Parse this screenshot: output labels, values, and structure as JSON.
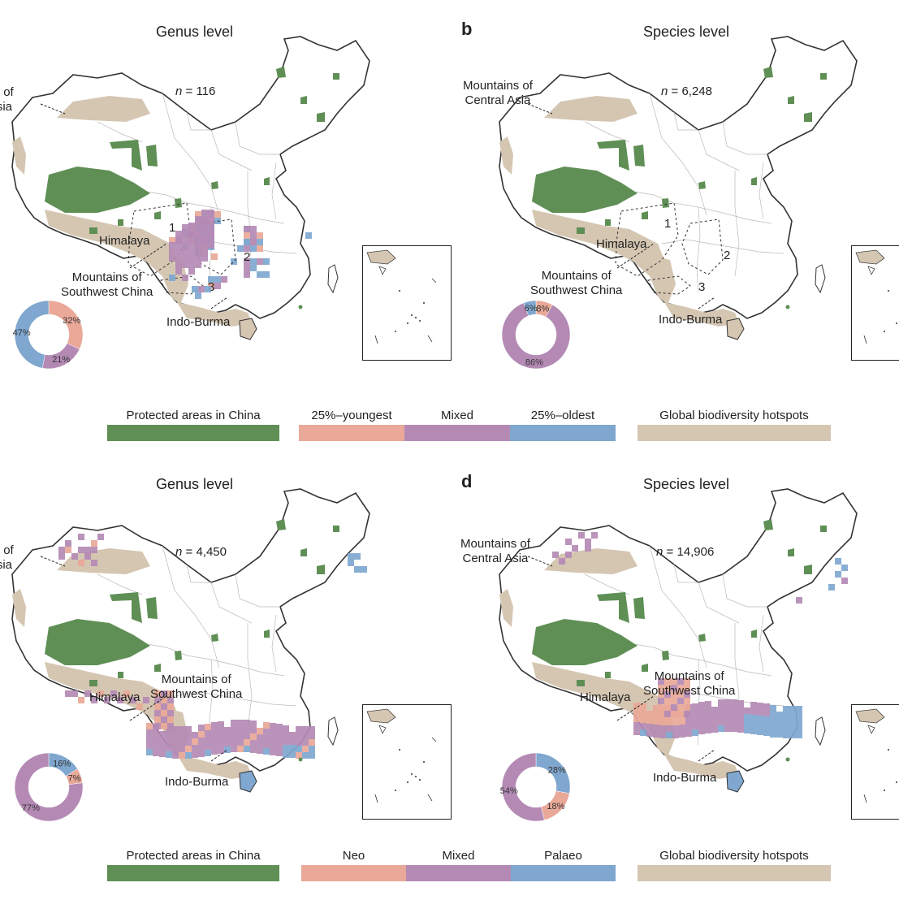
{
  "colors": {
    "protected": "#5f8f55",
    "young": "#e9a898",
    "mixed": "#b48ab5",
    "old": "#7fa7cf",
    "hotspot": "#d5c6b2",
    "border": "#333333",
    "province": "#bbbbbb"
  },
  "panels": [
    {
      "id": "a",
      "letter": "",
      "title": "Genus level",
      "n_label": "116",
      "labels": {
        "central_asia": "ntains of\ntral Asia",
        "himalaya": "Himalaya",
        "southwest": "Mountains of\nSouthwest China",
        "indo_burma": "Indo-Burma",
        "r1": "1",
        "r2": "2",
        "r3": "3"
      },
      "donut": [
        {
          "key": "young",
          "value": 32,
          "label": "32%"
        },
        {
          "key": "mixed",
          "value": 21,
          "label": "21%"
        },
        {
          "key": "old",
          "value": 47,
          "label": "47%"
        }
      ]
    },
    {
      "id": "b",
      "letter": "b",
      "title": "Species level",
      "n_label": "6,248",
      "labels": {
        "central_asia": "Mountains of\nCentral Asia",
        "himalaya": "Himalaya",
        "southwest": "Mountains of\nSouthwest China",
        "indo_burma": "Indo-Burma",
        "r1": "1",
        "r2": "2",
        "r3": "3"
      },
      "donut": [
        {
          "key": "young",
          "value": 8,
          "label": "8%"
        },
        {
          "key": "mixed",
          "value": 86,
          "label": "86%"
        },
        {
          "key": "old",
          "value": 6,
          "label": "6%"
        }
      ]
    },
    {
      "id": "c",
      "letter": "",
      "title": "Genus level",
      "n_label": "4,450",
      "labels": {
        "central_asia": "ntains of\ntral Asia",
        "himalaya": "Himalaya",
        "southwest": "Mountains of\nSouthwest China",
        "indo_burma": "Indo-Burma"
      },
      "donut": [
        {
          "key": "old",
          "value": 16,
          "label": "16%"
        },
        {
          "key": "young",
          "value": 7,
          "label": "7%"
        },
        {
          "key": "mixed",
          "value": 77,
          "label": "77%"
        }
      ]
    },
    {
      "id": "d",
      "letter": "d",
      "title": "Species level",
      "n_label": "14,906",
      "labels": {
        "central_asia": "Mountains of\nCentral Asia",
        "himalaya": "Himalaya",
        "southwest": "Mountains of\nSouthwest China",
        "indo_burma": "Indo-Burma"
      },
      "donut": [
        {
          "key": "old",
          "value": 28,
          "label": "28%"
        },
        {
          "key": "young",
          "value": 18,
          "label": "18%"
        },
        {
          "key": "mixed",
          "value": 54,
          "label": "54%"
        }
      ]
    }
  ],
  "legend_top": {
    "protected": "Protected areas in China",
    "young": "25%–youngest",
    "mixed": "Mixed",
    "old": "25%–oldest",
    "hotspot": "Global biodiversity hotspots"
  },
  "legend_bottom": {
    "protected": "Protected areas in China",
    "young": "Neo",
    "mixed": "Mixed",
    "old": "Palaeo",
    "hotspot": "Global biodiversity hotspots"
  }
}
